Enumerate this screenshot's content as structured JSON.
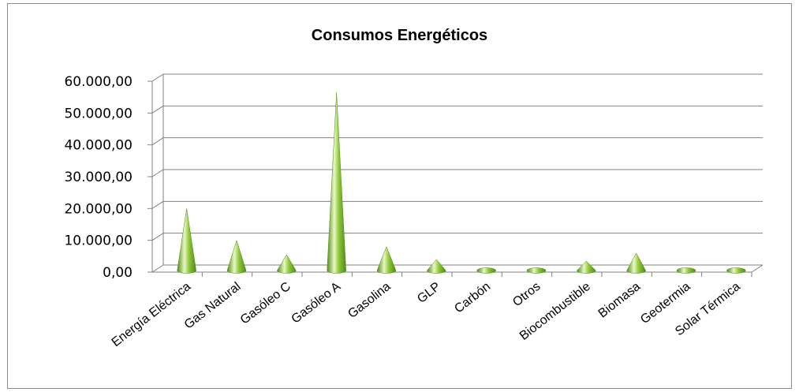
{
  "chart_data": {
    "type": "bar",
    "title": "Consumos Energéticos",
    "xlabel": "",
    "ylabel": "",
    "ylim": [
      0,
      60000
    ],
    "yticks": [
      0,
      10000,
      20000,
      30000,
      40000,
      50000,
      60000
    ],
    "ytick_labels": [
      "0,00",
      "10.000,00",
      "20.000,00",
      "30.000,00",
      "40.000,00",
      "50.000,00",
      "60.000,00"
    ],
    "grid": true,
    "legend": "none",
    "style": "3d-cone",
    "colors": {
      "cone": "#8fc83a",
      "cone_light": "#e9f8c4",
      "cone_dark": "#4f8a17",
      "grid": "#808080"
    },
    "categories": [
      "Energía Eléctrica",
      "Gas Natural",
      "Gasóleo C",
      "Gasóleo A",
      "Gasolina",
      "GLP",
      "Carbón",
      "Otros",
      "Biocombustible",
      "Biomasa",
      "Geotermia",
      "Solar Térmica"
    ],
    "values": [
      19500,
      9500,
      5000,
      56000,
      7500,
      3500,
      300,
      200,
      3000,
      5500,
      200,
      300
    ]
  }
}
